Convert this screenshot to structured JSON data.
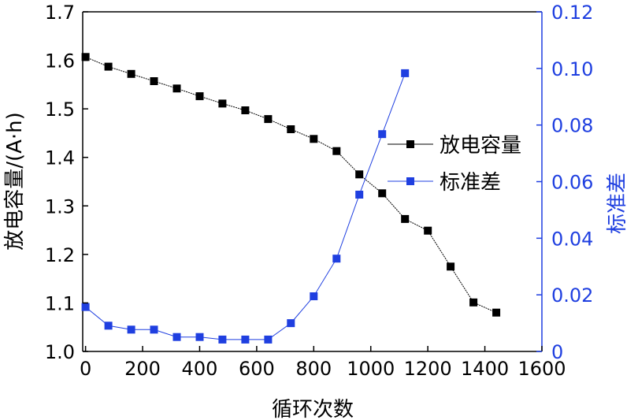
{
  "chart_data": {
    "type": "line",
    "title": "",
    "xlabel": "循环次数",
    "ylabel_left": "放电容量/(A·h)",
    "ylabel_right": "标准差",
    "xlim": [
      -10,
      1600
    ],
    "ylim_left": [
      1.0,
      1.7
    ],
    "ylim_right": [
      0,
      0.12
    ],
    "xticks": [
      "0",
      "200",
      "400",
      "600",
      "800",
      "1000",
      "1200",
      "1400",
      "1600"
    ],
    "yticks_left": [
      "1.0",
      "1.1",
      "1.2",
      "1.3",
      "1.4",
      "1.5",
      "1.6",
      "1.7"
    ],
    "yticks_right": [
      "0",
      "0.02",
      "0.04",
      "0.06",
      "0.08",
      "0.10",
      "0.12"
    ],
    "grid": false,
    "legend_position": "center-right",
    "colors": {
      "capacity": "#000000",
      "std": "#1f3fe0",
      "axis_left": "#000000",
      "axis_right": "#1f3fe0"
    },
    "series": [
      {
        "name": "放电容量",
        "axis": "left",
        "x": [
          0,
          80,
          160,
          240,
          320,
          400,
          480,
          560,
          640,
          720,
          800,
          880,
          960,
          1040,
          1120,
          1200,
          1280,
          1360,
          1440
        ],
        "values": [
          1.607,
          1.587,
          1.572,
          1.557,
          1.542,
          1.526,
          1.511,
          1.497,
          1.479,
          1.458,
          1.438,
          1.413,
          1.365,
          1.326,
          1.273,
          1.249,
          1.175,
          1.101,
          1.08
        ]
      },
      {
        "name": "标准差",
        "axis": "right",
        "x": [
          0,
          80,
          160,
          240,
          320,
          400,
          480,
          560,
          640,
          720,
          800,
          880,
          960,
          1040,
          1120
        ],
        "values": [
          0.0157,
          0.0091,
          0.0077,
          0.0077,
          0.0051,
          0.0051,
          0.0042,
          0.0042,
          0.0042,
          0.01,
          0.0195,
          0.0328,
          0.0554,
          0.0768,
          0.0983
        ]
      }
    ]
  }
}
